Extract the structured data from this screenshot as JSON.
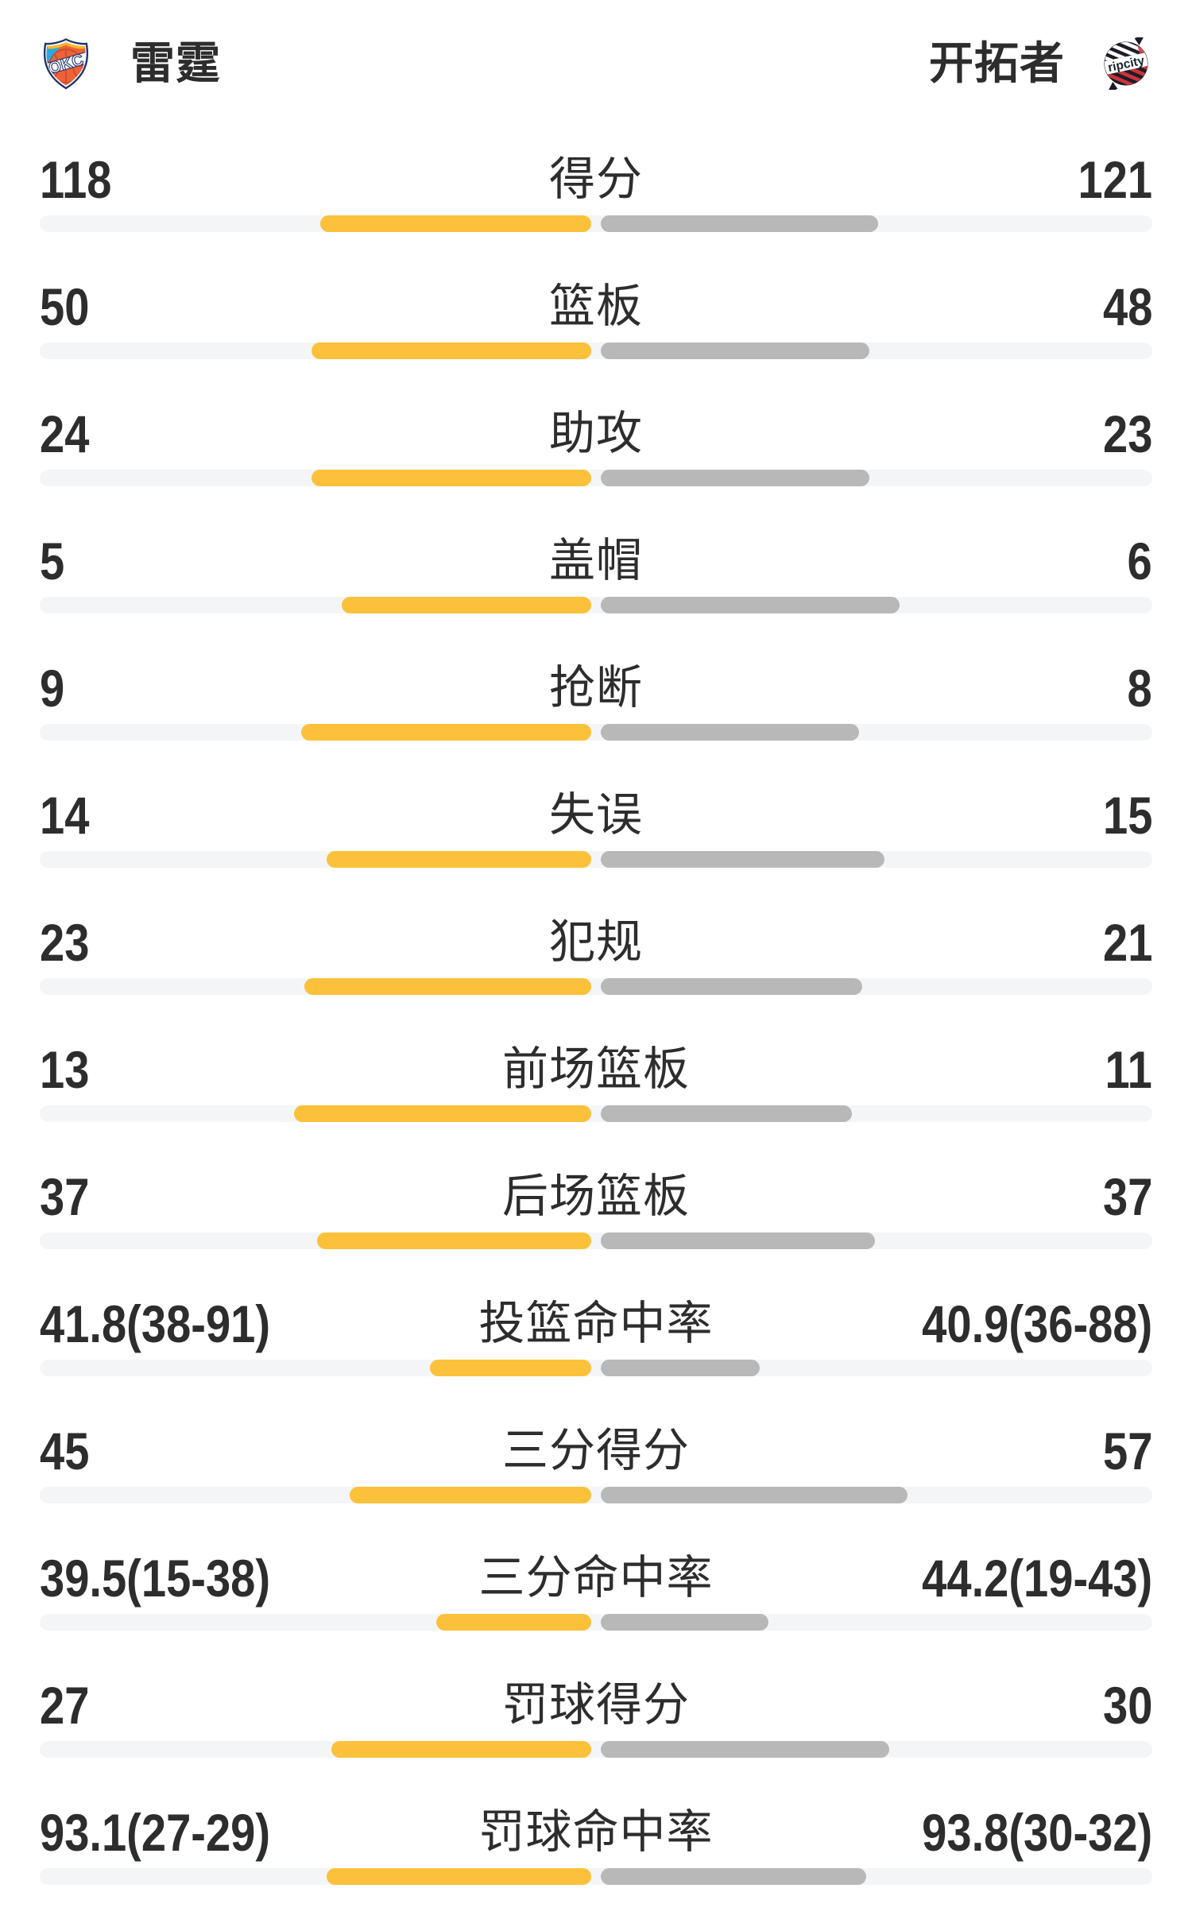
{
  "header": {
    "home": {
      "name": "雷霆",
      "logo_text": "OKC"
    },
    "away": {
      "name": "开拓者",
      "logo_text": "ripcity"
    }
  },
  "colors": {
    "home_bar": "#fbc13a",
    "away_bar": "#b8b8b8",
    "track": "#f4f5f7",
    "text": "#2d2d2d",
    "okc_navy": "#23356b",
    "okc_orange": "#ef6136",
    "okc_blue": "#2fa8e0",
    "okc_red": "#e13a3e",
    "okc_yellow": "#fdb927",
    "blazers_dark": "#1c1c26",
    "blazers_red": "#cf3339"
  },
  "chart_data": {
    "type": "bar",
    "subtype": "paired-horizontal-comparison",
    "legend_left": "雷霆",
    "legend_right": "开拓者",
    "rows": [
      {
        "label": "得分",
        "home_display": "118",
        "away_display": "121",
        "home_value": 118,
        "away_value": 121,
        "is_percent": false
      },
      {
        "label": "篮板",
        "home_display": "50",
        "away_display": "48",
        "home_value": 50,
        "away_value": 48,
        "is_percent": false
      },
      {
        "label": "助攻",
        "home_display": "24",
        "away_display": "23",
        "home_value": 24,
        "away_value": 23,
        "is_percent": false
      },
      {
        "label": "盖帽",
        "home_display": "5",
        "away_display": "6",
        "home_value": 5,
        "away_value": 6,
        "is_percent": false
      },
      {
        "label": "抢断",
        "home_display": "9",
        "away_display": "8",
        "home_value": 9,
        "away_value": 8,
        "is_percent": false
      },
      {
        "label": "失误",
        "home_display": "14",
        "away_display": "15",
        "home_value": 14,
        "away_value": 15,
        "is_percent": false
      },
      {
        "label": "犯规",
        "home_display": "23",
        "away_display": "21",
        "home_value": 23,
        "away_value": 21,
        "is_percent": false
      },
      {
        "label": "前场篮板",
        "home_display": "13",
        "away_display": "11",
        "home_value": 13,
        "away_value": 11,
        "is_percent": false
      },
      {
        "label": "后场篮板",
        "home_display": "37",
        "away_display": "37",
        "home_value": 37,
        "away_value": 37,
        "is_percent": false
      },
      {
        "label": "投篮命中率",
        "home_display": "41.8(38-91)",
        "away_display": "40.9(36-88)",
        "home_value": 41.8,
        "away_value": 40.9,
        "home_made": 38,
        "home_att": 91,
        "away_made": 36,
        "away_att": 88,
        "is_percent": true
      },
      {
        "label": "三分得分",
        "home_display": "45",
        "away_display": "57",
        "home_value": 45,
        "away_value": 57,
        "is_percent": false
      },
      {
        "label": "三分命中率",
        "home_display": "39.5(15-38)",
        "away_display": "44.2(19-43)",
        "home_value": 39.5,
        "away_value": 44.2,
        "home_made": 15,
        "home_att": 38,
        "away_made": 19,
        "away_att": 43,
        "is_percent": true
      },
      {
        "label": "罚球得分",
        "home_display": "27",
        "away_display": "30",
        "home_value": 27,
        "away_value": 30,
        "is_percent": false
      },
      {
        "label": "罚球命中率",
        "home_display": "93.1(27-29)",
        "away_display": "93.8(30-32)",
        "home_value": 93.1,
        "away_value": 93.8,
        "home_made": 27,
        "home_att": 29,
        "away_made": 30,
        "away_att": 32,
        "is_percent": true
      }
    ]
  }
}
